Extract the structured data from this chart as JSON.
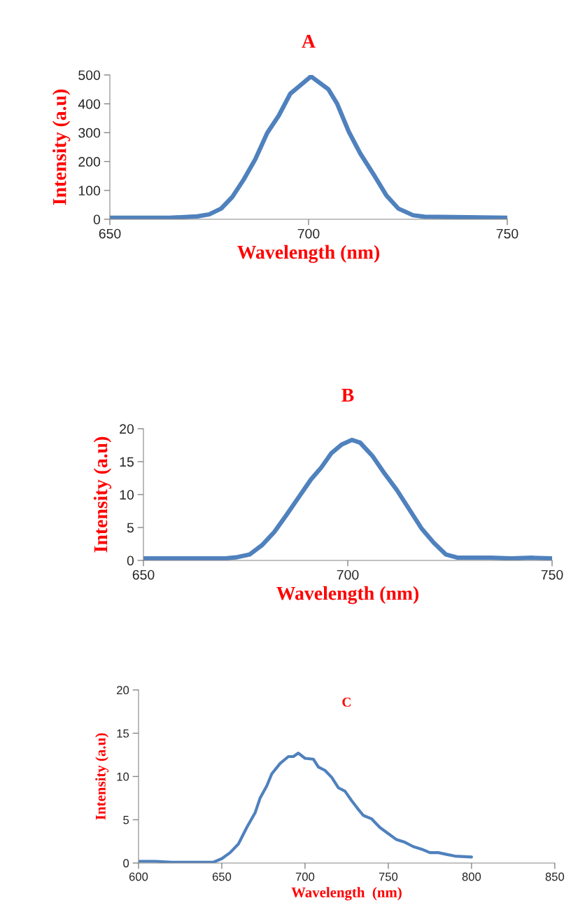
{
  "chart_data": [
    {
      "type": "line",
      "title": "A",
      "xlabel": "Wavelength (nm)",
      "ylabel": "Intensity (a.u)",
      "xlim": [
        650,
        750
      ],
      "xticks": [
        650,
        700,
        750
      ],
      "ylim": [
        0,
        500
      ],
      "yticks": [
        0,
        100,
        200,
        300,
        400,
        500
      ],
      "grid": false,
      "legend": false,
      "series": [
        {
          "color": "#4f81bd",
          "x": [
            650,
            665,
            672,
            675,
            678,
            680.8,
            683.7,
            686.6,
            689.6,
            692.5,
            695.4,
            697.6,
            700.6,
            705,
            707.2,
            710.1,
            713,
            716.7,
            719.6,
            722.6,
            726.3,
            729.2,
            740,
            750
          ],
          "values": [
            5,
            5,
            10,
            17,
            37,
            77,
            138,
            208,
            299,
            359,
            435,
            460,
            495,
            450,
            400,
            304,
            228,
            148,
            82,
            37,
            14,
            9,
            7,
            5
          ]
        }
      ]
    },
    {
      "type": "line",
      "title": "B",
      "xlabel": "Wavelength (nm)",
      "ylabel": "Intensity (a.u)",
      "xlim": [
        650,
        750
      ],
      "xticks": [
        650,
        700,
        750
      ],
      "ylim": [
        0,
        20
      ],
      "yticks": [
        0,
        5,
        10,
        15,
        20
      ],
      "grid": false,
      "legend": false,
      "series": [
        {
          "color": "#4f81bd",
          "x": [
            650,
            670,
            673,
            676,
            679,
            682,
            685,
            688,
            691,
            693.5,
            696,
            698.5,
            701,
            703,
            706,
            709,
            712,
            715,
            718,
            721,
            724,
            727,
            735,
            740,
            745,
            750
          ],
          "values": [
            0.3,
            0.3,
            0.5,
            0.9,
            2.3,
            4.3,
            6.9,
            9.6,
            12.3,
            14.1,
            16.3,
            17.6,
            18.3,
            17.9,
            15.9,
            13.2,
            10.7,
            7.8,
            4.9,
            2.7,
            0.9,
            0.4,
            0.4,
            0.3,
            0.4,
            0.3
          ]
        }
      ]
    },
    {
      "type": "line",
      "title": "C",
      "xlabel": "Wavelength  (nm)",
      "ylabel": "Intensity (a.u)",
      "xlim": [
        600,
        850
      ],
      "xticks": [
        600,
        650,
        700,
        750,
        800,
        850
      ],
      "ylim": [
        0,
        20
      ],
      "yticks": [
        0,
        5,
        10,
        15,
        20
      ],
      "grid": false,
      "legend": false,
      "series": [
        {
          "color": "#4f81bd",
          "x": [
            600,
            610,
            620,
            630,
            640,
            645,
            650,
            655,
            660,
            665,
            670,
            673,
            677,
            680,
            685,
            690,
            693,
            696,
            700,
            705,
            708,
            712,
            716,
            720,
            724,
            728,
            732,
            735,
            740,
            745,
            750,
            755,
            760,
            765,
            770,
            775,
            780,
            785,
            790,
            800
          ],
          "values": [
            0.2,
            0.2,
            0.1,
            0.1,
            0.1,
            0.1,
            0.5,
            1.2,
            2.2,
            4.1,
            5.8,
            7.5,
            8.9,
            10.3,
            11.5,
            12.3,
            12.3,
            12.7,
            12.1,
            12.0,
            11.1,
            10.7,
            9.9,
            8.7,
            8.3,
            7.2,
            6.2,
            5.5,
            5.1,
            4.1,
            3.4,
            2.7,
            2.4,
            1.9,
            1.6,
            1.2,
            1.2,
            1.0,
            0.8,
            0.7
          ]
        }
      ]
    }
  ]
}
